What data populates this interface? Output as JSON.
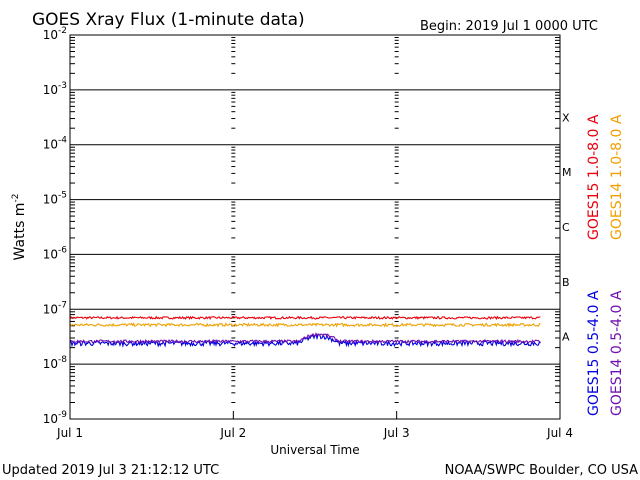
{
  "header": {
    "title": "GOES Xray Flux (1-minute data)",
    "begin": "Begin:  2019 Jul 1 0000 UTC"
  },
  "footer": {
    "updated": "Updated 2019 Jul  3 21:12:12 UTC",
    "source": "NOAA/SWPC Boulder, CO USA"
  },
  "chart_data": {
    "type": "line",
    "title": "GOES Xray Flux (1-minute data)",
    "xlabel": "Universal Time",
    "ylabel": "Watts m⁻²",
    "x_ticks": [
      "Jul 1",
      "Jul 2",
      "Jul 3",
      "Jul 4"
    ],
    "x_range_days": [
      0,
      3
    ],
    "y_scale": "log",
    "y_range": [
      1e-09,
      0.01
    ],
    "y_ticks": [
      {
        "exp": -2,
        "base": "10",
        "sup": "-2"
      },
      {
        "exp": -3,
        "base": "10",
        "sup": "-3"
      },
      {
        "exp": -4,
        "base": "10",
        "sup": "-4"
      },
      {
        "exp": -5,
        "base": "10",
        "sup": "-5"
      },
      {
        "exp": -6,
        "base": "10",
        "sup": "-6"
      },
      {
        "exp": -7,
        "base": "10",
        "sup": "-7"
      },
      {
        "exp": -8,
        "base": "10",
        "sup": "-8"
      },
      {
        "exp": -9,
        "base": "10",
        "sup": "-9"
      }
    ],
    "flare_classes": [
      {
        "label": "X",
        "exp": -4
      },
      {
        "label": "M",
        "exp": -5
      },
      {
        "label": "C",
        "exp": -6
      },
      {
        "label": "B",
        "exp": -7
      },
      {
        "label": "A",
        "exp": -8
      }
    ],
    "series": [
      {
        "name": "GOES15 1.0-8.0 A",
        "color": "#e8000b",
        "level": 7e-08,
        "jitter": 0.04,
        "data_end_day": 2.88
      },
      {
        "name": "GOES14 1.0-8.0 A",
        "color": "#f0a000",
        "level": 5.2e-08,
        "jitter": 0.05,
        "data_end_day": 2.88
      },
      {
        "name": "GOES15 0.5-4.0 A",
        "color": "#0000e0",
        "level": 2.4e-08,
        "jitter": 0.09,
        "data_end_day": 2.88
      },
      {
        "name": "GOES14 0.5-4.0 A",
        "color": "#7010b0",
        "level": 2.6e-08,
        "jitter": 0.05,
        "data_end_day": 2.88
      }
    ]
  }
}
